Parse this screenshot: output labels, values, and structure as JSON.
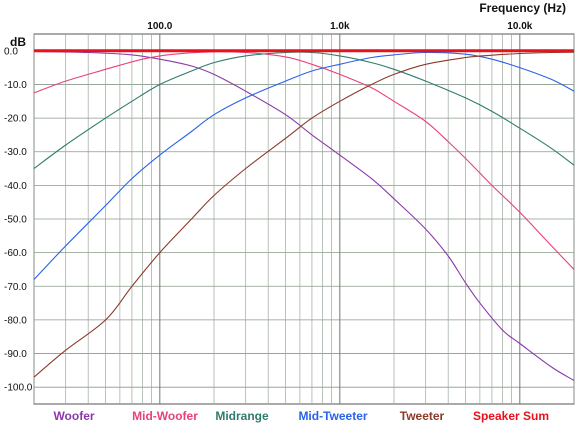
{
  "chart_data": {
    "type": "line",
    "title": "",
    "xlabel": "Frequency  (Hz)",
    "ylabel": "dB",
    "xscale": "log",
    "xlim": [
      20,
      20000
    ],
    "ylim": [
      -105,
      5
    ],
    "x_tick_labels": [
      "100.0",
      "1.0k",
      "10.0k"
    ],
    "x_tick_values": [
      100,
      1000,
      10000
    ],
    "y_tick_labels": [
      "0.0",
      "-10.0",
      "-20.0",
      "-30.0",
      "-40.0",
      "-50.0",
      "-60.0",
      "-70.0",
      "-80.0",
      "-90.0",
      "-100.0"
    ],
    "y_tick_values": [
      0,
      -10,
      -20,
      -30,
      -40,
      -50,
      -60,
      -70,
      -80,
      -90,
      -100
    ],
    "grid": true,
    "legend_position": "bottom",
    "series": [
      {
        "name": "Woofer",
        "color": "#8a3aa8",
        "points": [
          [
            20,
            -0.2
          ],
          [
            40,
            -0.5
          ],
          [
            70,
            -1.2
          ],
          [
            100,
            -2.5
          ],
          [
            150,
            -4.5
          ],
          [
            200,
            -7
          ],
          [
            300,
            -12
          ],
          [
            500,
            -19
          ],
          [
            700,
            -25
          ],
          [
            1000,
            -31
          ],
          [
            1500,
            -38
          ],
          [
            2000,
            -44
          ],
          [
            3000,
            -53
          ],
          [
            4000,
            -61
          ],
          [
            5000,
            -69
          ],
          [
            6000,
            -75
          ],
          [
            8000,
            -83
          ],
          [
            10000,
            -87
          ],
          [
            15000,
            -94
          ],
          [
            20000,
            -98
          ]
        ]
      },
      {
        "name": "Mid-Woofer",
        "color": "#e8417a",
        "points": [
          [
            20,
            -12.5
          ],
          [
            30,
            -9
          ],
          [
            50,
            -5.5
          ],
          [
            80,
            -2.5
          ],
          [
            120,
            -1
          ],
          [
            200,
            -0.3
          ],
          [
            300,
            -0.5
          ],
          [
            500,
            -1.8
          ],
          [
            700,
            -4
          ],
          [
            1000,
            -7
          ],
          [
            1500,
            -11
          ],
          [
            2000,
            -15
          ],
          [
            3000,
            -21
          ],
          [
            4000,
            -27
          ],
          [
            5000,
            -32
          ],
          [
            7000,
            -40
          ],
          [
            10000,
            -48
          ],
          [
            15000,
            -58
          ],
          [
            20000,
            -65
          ]
        ]
      },
      {
        "name": "Midrange",
        "color": "#2e7c6e",
        "points": [
          [
            20,
            -35
          ],
          [
            30,
            -28
          ],
          [
            50,
            -20
          ],
          [
            70,
            -15
          ],
          [
            100,
            -10
          ],
          [
            150,
            -6
          ],
          [
            200,
            -3.5
          ],
          [
            300,
            -1.5
          ],
          [
            500,
            -0.5
          ],
          [
            700,
            -0.5
          ],
          [
            1000,
            -1.5
          ],
          [
            1500,
            -3.5
          ],
          [
            2000,
            -5.5
          ],
          [
            3000,
            -9
          ],
          [
            5000,
            -14
          ],
          [
            7000,
            -18
          ],
          [
            10000,
            -23
          ],
          [
            15000,
            -29
          ],
          [
            20000,
            -34
          ]
        ]
      },
      {
        "name": "Mid-Tweeter",
        "color": "#2a62e8",
        "points": [
          [
            20,
            -68
          ],
          [
            30,
            -58
          ],
          [
            50,
            -46
          ],
          [
            70,
            -38
          ],
          [
            100,
            -31
          ],
          [
            150,
            -24
          ],
          [
            200,
            -19
          ],
          [
            300,
            -14
          ],
          [
            500,
            -9
          ],
          [
            700,
            -6
          ],
          [
            1000,
            -4
          ],
          [
            1500,
            -2
          ],
          [
            2000,
            -1.2
          ],
          [
            3000,
            -0.5
          ],
          [
            5000,
            -1
          ],
          [
            7000,
            -2.5
          ],
          [
            10000,
            -5
          ],
          [
            15000,
            -8.5
          ],
          [
            20000,
            -12
          ]
        ]
      },
      {
        "name": "Tweeter",
        "color": "#8b3a2a",
        "points": [
          [
            20,
            -97
          ],
          [
            30,
            -89
          ],
          [
            50,
            -80
          ],
          [
            70,
            -70
          ],
          [
            100,
            -60
          ],
          [
            150,
            -50
          ],
          [
            200,
            -43
          ],
          [
            300,
            -35
          ],
          [
            500,
            -26
          ],
          [
            700,
            -20
          ],
          [
            1000,
            -15
          ],
          [
            1500,
            -10
          ],
          [
            2000,
            -7
          ],
          [
            3000,
            -4
          ],
          [
            5000,
            -2
          ],
          [
            7000,
            -1.3
          ],
          [
            10000,
            -0.8
          ],
          [
            15000,
            -0.5
          ],
          [
            20000,
            -0.4
          ]
        ]
      },
      {
        "name": "Speaker Sum",
        "color": "#e8121e",
        "points": [
          [
            20,
            0
          ],
          [
            100,
            0
          ],
          [
            1000,
            0
          ],
          [
            10000,
            0
          ],
          [
            20000,
            0
          ]
        ]
      }
    ]
  }
}
